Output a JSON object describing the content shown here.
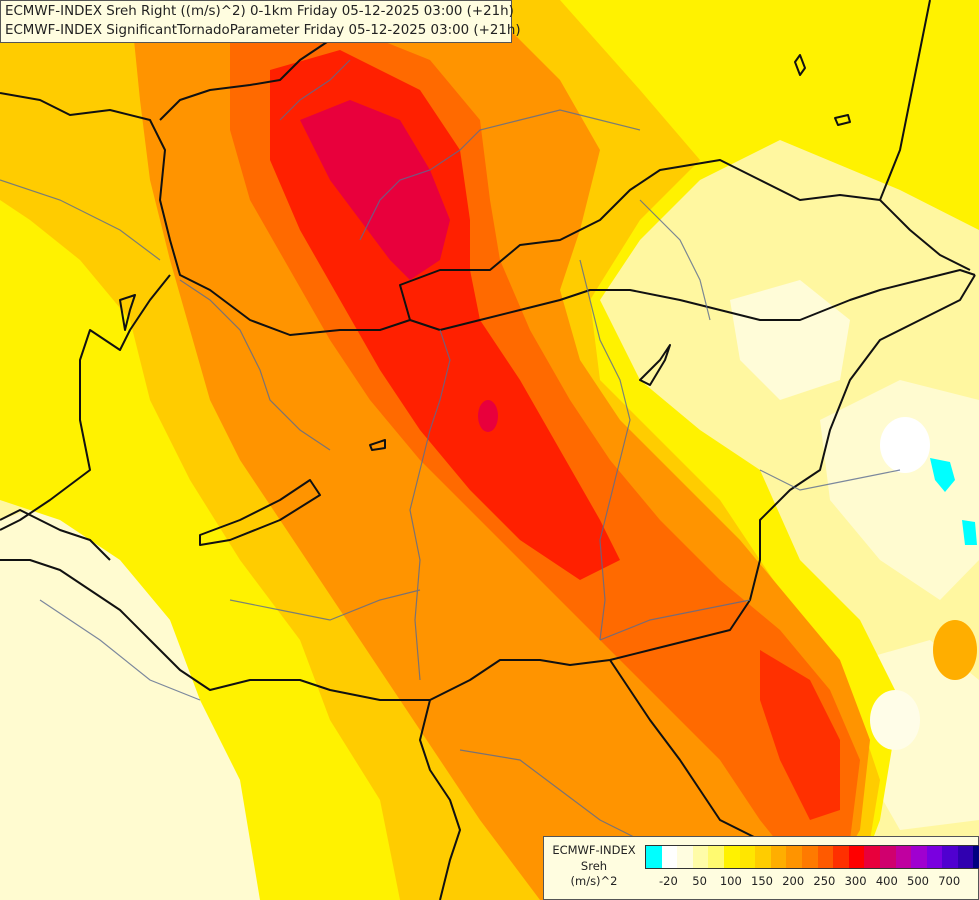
{
  "header": {
    "line1": "ECMWF-INDEX Sreh Right ((m/s)^2) 0-1km Friday 05-12-2025 03:00 (+21h)",
    "line2": "ECMWF-INDEX SignificantTornadoParameter Friday 05-12-2025 03:00 (+21h)"
  },
  "legend": {
    "title_line1": "ECMWF-INDEX",
    "title_line2": "Sreh",
    "title_line3": "(m/s)^2",
    "colors": [
      "#00ffff",
      "#ffffff",
      "#fffde0",
      "#fffca8",
      "#fffa70",
      "#fff200",
      "#ffe600",
      "#ffcc00",
      "#ffae00",
      "#ff9400",
      "#ff7a00",
      "#ff5a00",
      "#ff3000",
      "#ff0000",
      "#e8003c",
      "#d0006e",
      "#c000a0",
      "#a000d0",
      "#7a00e0",
      "#5000d0",
      "#3000b0",
      "#000080"
    ],
    "ticks": [
      {
        "label": "-20",
        "index": 1
      },
      {
        "label": "50",
        "index": 3
      },
      {
        "label": "100",
        "index": 5
      },
      {
        "label": "150",
        "index": 7
      },
      {
        "label": "200",
        "index": 9
      },
      {
        "label": "250",
        "index": 11
      },
      {
        "label": "300",
        "index": 13
      },
      {
        "label": "400",
        "index": 15
      },
      {
        "label": "500",
        "index": 17
      },
      {
        "label": "700",
        "index": 19
      }
    ]
  }
}
